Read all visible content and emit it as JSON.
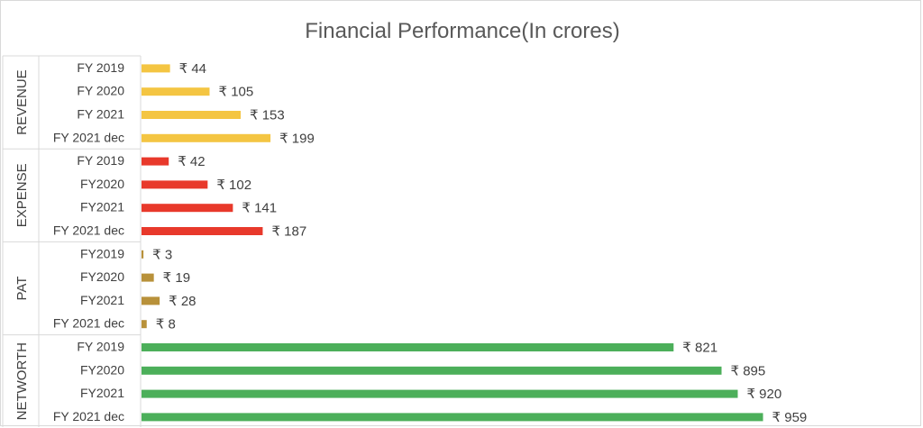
{
  "chart_data": {
    "type": "bar",
    "orientation": "horizontal",
    "title": "Financial Performance(In crores)",
    "currency_symbol": "₹",
    "grid": false,
    "legend": "none",
    "groups": [
      {
        "name": "REVENUE",
        "color": "#F4C542",
        "categories": [
          "FY 2019",
          "FY 2020",
          "FY 2021",
          "FY 2021 dec"
        ],
        "values": [
          44,
          105,
          153,
          199
        ],
        "labels": [
          "₹ 44",
          "₹ 105",
          "₹ 153",
          "₹ 199"
        ]
      },
      {
        "name": "EXPENSE",
        "color": "#E8392B",
        "categories": [
          "FY 2019",
          "FY2020",
          "FY2021",
          "FY 2021 dec"
        ],
        "values": [
          42,
          102,
          141,
          187
        ],
        "labels": [
          "₹ 42",
          "₹ 102",
          "₹ 141",
          "₹ 187"
        ]
      },
      {
        "name": "PAT",
        "color": "#B8913A",
        "categories": [
          "FY2019",
          "FY2020",
          "FY2021",
          "FY 2021 dec"
        ],
        "values": [
          3,
          19,
          28,
          8
        ],
        "labels": [
          "₹ 3",
          "₹ 19",
          "₹ 28",
          "₹ 8"
        ]
      },
      {
        "name": "NETWORTH",
        "color": "#4CAF5A",
        "categories": [
          "FY 2019",
          "FY2020",
          "FY2021",
          "FY 2021 dec"
        ],
        "values": [
          821,
          895,
          920,
          959
        ],
        "labels": [
          "₹ 821",
          "₹ 895",
          "₹ 920",
          "₹ 959"
        ]
      }
    ]
  }
}
